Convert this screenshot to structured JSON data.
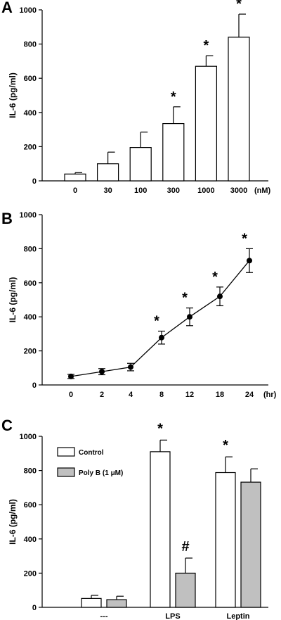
{
  "chart_data": [
    {
      "panel": "A",
      "type": "bar",
      "ylabel": "IL-6 (pg/ml)",
      "ylim": [
        0,
        1000
      ],
      "yticks": [
        "0",
        "200",
        "400",
        "600",
        "800",
        "1000"
      ],
      "categories": [
        "0",
        "30",
        "100",
        "300",
        "1000",
        "3000"
      ],
      "unit": "(nM)",
      "values": [
        40,
        100,
        195,
        335,
        670,
        840
      ],
      "errors": [
        8,
        68,
        90,
        98,
        62,
        135
      ],
      "significance": [
        "",
        "",
        "",
        "*",
        "*",
        "*"
      ],
      "colors": {
        "bar_fill": "#ffffff",
        "stroke": "#000000"
      }
    },
    {
      "panel": "B",
      "type": "line",
      "ylabel": "IL-6 (pg/ml)",
      "ylim": [
        0,
        1000
      ],
      "yticks": [
        "0",
        "200",
        "400",
        "600",
        "800",
        "1000"
      ],
      "categories": [
        "0",
        "2",
        "4",
        "8",
        "12",
        "18",
        "24"
      ],
      "unit": "(hr)",
      "values": [
        50,
        78,
        105,
        278,
        400,
        520,
        730
      ],
      "errors": [
        12,
        18,
        22,
        38,
        52,
        55,
        70
      ],
      "significance": [
        "",
        "",
        "",
        "*",
        "*",
        "*",
        "*"
      ],
      "colors": {
        "marker": "#000000"
      }
    },
    {
      "panel": "C",
      "type": "bar",
      "ylabel": "IL-6 (pg/ml)",
      "ylim": [
        0,
        1000
      ],
      "yticks": [
        "0",
        "200",
        "400",
        "600",
        "800",
        "1000"
      ],
      "categories": [
        "---",
        "LPS",
        "Leptin"
      ],
      "series": [
        {
          "name": "Control",
          "values": [
            52,
            910,
            788
          ],
          "errors": [
            18,
            68,
            92
          ],
          "significance": [
            "",
            "*",
            "*"
          ],
          "color": "#ffffff"
        },
        {
          "name": "Poly B (1 μM)",
          "values": [
            45,
            200,
            732
          ],
          "errors": [
            20,
            88,
            78
          ],
          "significance": [
            "",
            "#",
            ""
          ],
          "color": "#c0c0c0"
        }
      ]
    }
  ]
}
